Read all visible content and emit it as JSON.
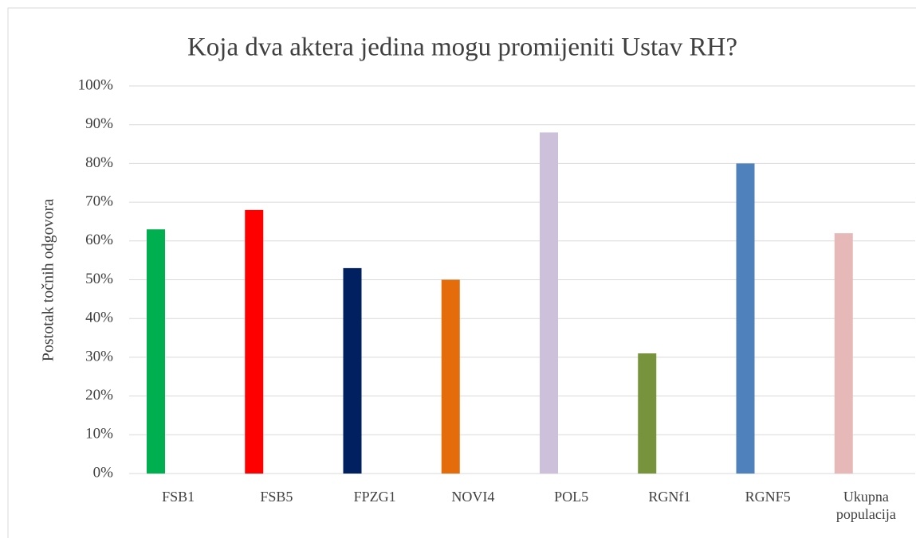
{
  "chart_data": {
    "type": "bar",
    "title": "Koja dva aktera jedina mogu promijeniti Ustav RH?",
    "y_label": "Postotak točnih odgovora",
    "categories": [
      "FSB1",
      "FSB5",
      "FPZG1",
      "NOVI4",
      "POL5",
      "RGNf1",
      "RGNF5",
      "Ukupna populacija"
    ],
    "values": [
      63,
      68,
      53,
      50,
      88,
      31,
      80,
      62
    ],
    "colors": [
      "#00b050",
      "#ff0000",
      "#002060",
      "#e46c0a",
      "#ccc0da",
      "#77933c",
      "#4f81bd",
      "#e6b9b8"
    ],
    "ylim": [
      0,
      100
    ],
    "yticks": [
      {
        "value": 0,
        "label": "0%"
      },
      {
        "value": 10,
        "label": "10%"
      },
      {
        "value": 20,
        "label": "20%"
      },
      {
        "value": 30,
        "label": "30%"
      },
      {
        "value": 40,
        "label": "40%"
      },
      {
        "value": 50,
        "label": "50%"
      },
      {
        "value": 60,
        "label": "60%"
      },
      {
        "value": 70,
        "label": "70%"
      },
      {
        "value": 80,
        "label": "80%"
      },
      {
        "value": 90,
        "label": "90%"
      },
      {
        "value": 100,
        "label": "100%"
      }
    ],
    "grid": true
  }
}
